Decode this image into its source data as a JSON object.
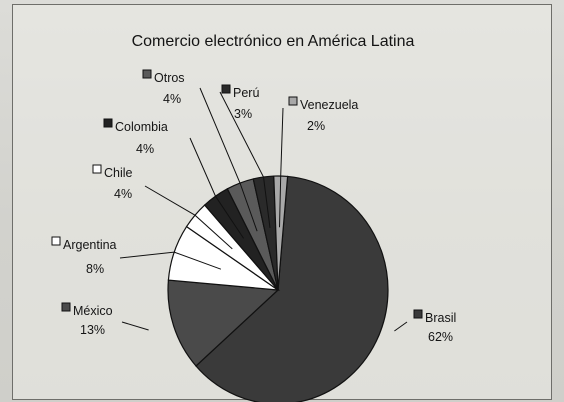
{
  "chart_data": {
    "type": "pie",
    "title": "Comercio electrónico en América Latina",
    "slices": [
      {
        "name": "Brasil",
        "value": 62,
        "label": "62%",
        "color": "#3a3a3a"
      },
      {
        "name": "México",
        "value": 13,
        "label": "13%",
        "color": "#4a4a4a"
      },
      {
        "name": "Argentina",
        "value": 8,
        "label": "8%",
        "color": "#ffffff"
      },
      {
        "name": "Chile",
        "value": 4,
        "label": "4%",
        "color": "#ffffff"
      },
      {
        "name": "Colombia",
        "value": 4,
        "label": "4%",
        "color": "#222222"
      },
      {
        "name": "Otros",
        "value": 4,
        "label": "4%",
        "color": "#5a5a5a"
      },
      {
        "name": "Perú",
        "value": 3,
        "label": "3%",
        "color": "#2a2a2a"
      },
      {
        "name": "Venezuela",
        "value": 2,
        "label": "2%",
        "color": "#a8a8a8"
      }
    ],
    "legend": "labels-with-markers"
  }
}
